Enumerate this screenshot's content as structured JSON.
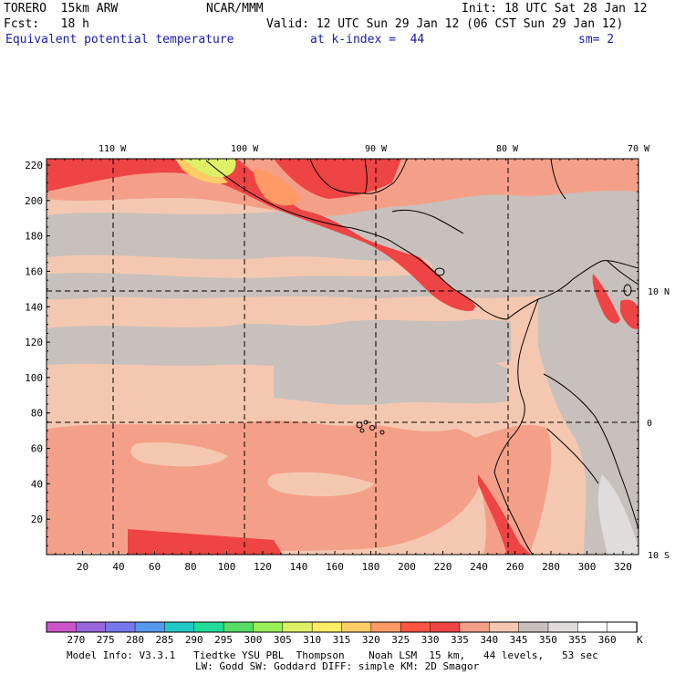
{
  "header": {
    "model": "TORERO  15km ARW",
    "org": "NCAR/MMM",
    "init": "Init: 18 UTC Sat 28 Jan 12",
    "fcst": "Fcst:   18 h",
    "valid": "Valid: 12 UTC Sun 29 Jan 12 (06 CST Sun 29 Jan 12)",
    "field": "Equivalent potential temperature",
    "level": "at k-index =  44",
    "smooth": "sm= 2"
  },
  "map": {
    "lon_labels": [
      "110 W",
      "100 W",
      "90 W",
      "80 W",
      "70 W"
    ],
    "lat_labels": [
      "10 N",
      "0",
      "10 S"
    ],
    "y_ticks": [
      "20",
      "40",
      "60",
      "80",
      "100",
      "120",
      "140",
      "160",
      "180",
      "200",
      "220"
    ],
    "x_ticks": [
      "20",
      "40",
      "60",
      "80",
      "100",
      "120",
      "140",
      "160",
      "180",
      "200",
      "220",
      "240",
      "260",
      "280",
      "300",
      "320"
    ]
  },
  "colorbar": {
    "labels": [
      "270",
      "275",
      "280",
      "285",
      "290",
      "295",
      "300",
      "305",
      "310",
      "315",
      "320",
      "325",
      "330",
      "335",
      "340",
      "345",
      "350",
      "355",
      "360"
    ],
    "unit": "K",
    "colors": [
      "#cc55cc",
      "#9966dd",
      "#7777ee",
      "#5599ee",
      "#22c8c8",
      "#22dd99",
      "#55dd66",
      "#99ee55",
      "#ddf066",
      "#ffee66",
      "#ffcc66",
      "#ff9966",
      "#ff5544",
      "#ee4444",
      "#f4a088",
      "#f4c8b0",
      "#c8c0bc",
      "#e0dcdc",
      "#ffffff",
      "#ffffff"
    ]
  },
  "footer": {
    "line1": "Model Info: V3.3.1   Tiedtke YSU PBL  Thompson    Noah LSM  15 km,   44 levels,   53 sec",
    "line2": "LW: Godd SW: Goddard DIFF: simple KM: 2D Smagor"
  }
}
